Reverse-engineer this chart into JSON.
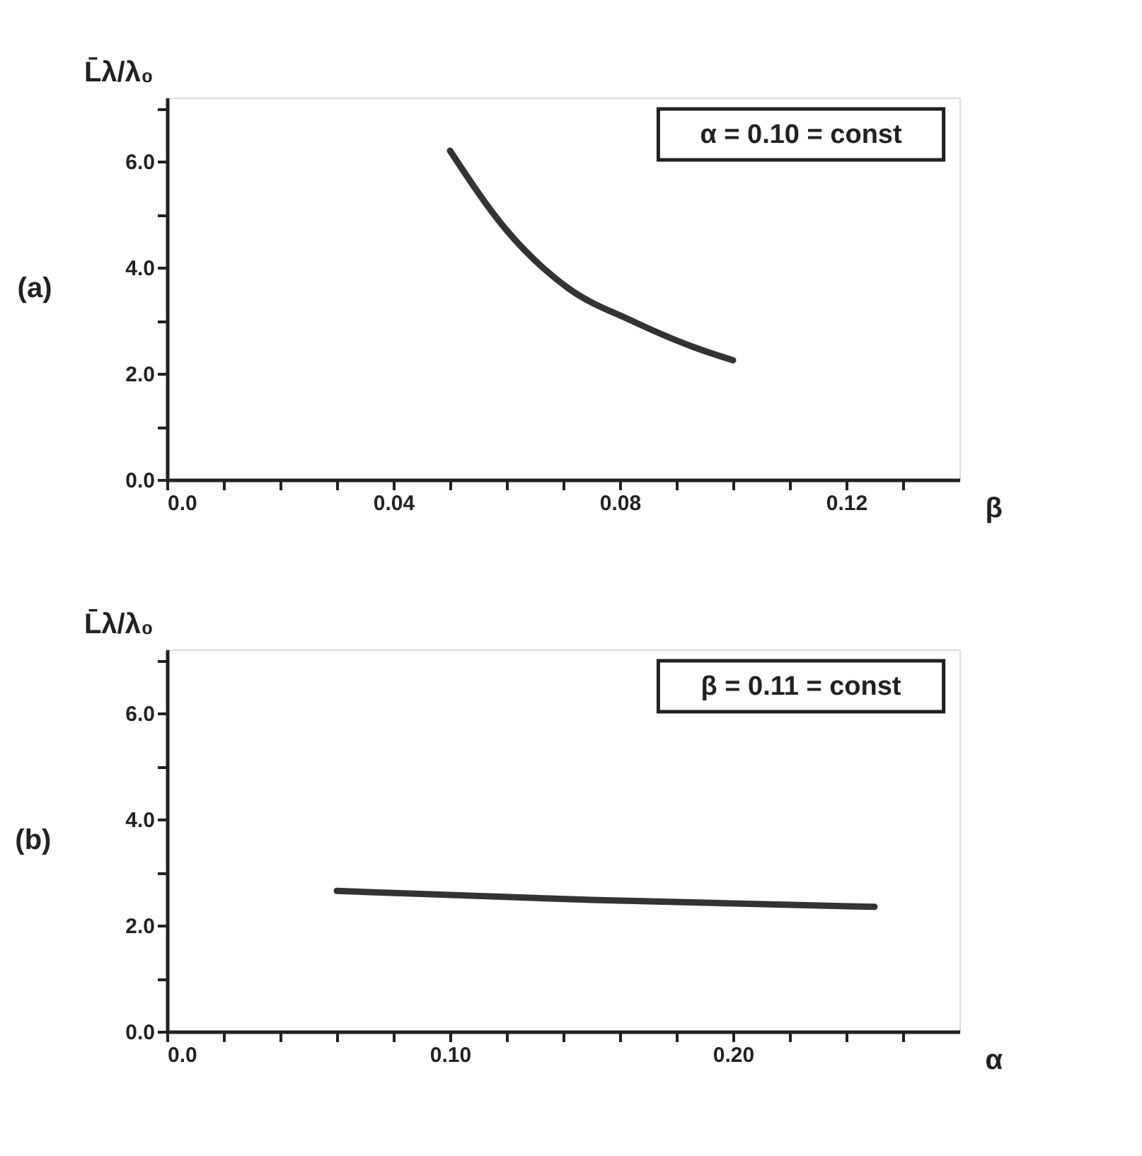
{
  "chart_data": [
    {
      "type": "line",
      "title": "(a)",
      "xlabel": "β",
      "ylabel": "L̄λ/λ₀",
      "annotations": [
        "α = 0.10 = const"
      ],
      "grid": false,
      "line_style": "solid",
      "xlim": [
        0,
        0.14
      ],
      "ylim": [
        0,
        7.2
      ],
      "xticks": [
        {
          "value": 0,
          "label": "0.0"
        },
        {
          "value": 0.01,
          "label": null
        },
        {
          "value": 0.02,
          "label": null
        },
        {
          "value": 0.03,
          "label": null
        },
        0.04,
        {
          "value": 0.05,
          "label": null
        },
        {
          "value": 0.06,
          "label": null
        },
        {
          "value": 0.07,
          "label": null
        },
        0.08,
        {
          "value": 0.09,
          "label": null
        },
        {
          "value": 0.1,
          "label": null
        },
        {
          "value": 0.11,
          "label": null
        },
        0.12,
        {
          "value": 0.13,
          "label": null
        }
      ],
      "yticks": [
        {
          "value": 0,
          "label": "0.0"
        },
        {
          "value": 1,
          "label": null
        },
        {
          "value": 2,
          "label": "2.0"
        },
        {
          "value": 3,
          "label": null
        },
        {
          "value": 4,
          "label": "4.0"
        },
        {
          "value": 5,
          "label": null
        },
        {
          "value": 6,
          "label": "6.0"
        },
        {
          "value": 7,
          "label": null
        }
      ],
      "series": [
        {
          "color": "#333333",
          "x": [
            0.05,
            0.06,
            0.071,
            0.082,
            0.093,
            0.1
          ],
          "values": [
            6.2,
            4.7,
            3.6,
            3.0,
            2.5,
            2.25
          ]
        }
      ]
    },
    {
      "type": "line",
      "title": "(b)",
      "xlabel": "α",
      "ylabel": "L̄λ/λ₀",
      "annotations": [
        "β = 0.11 = const"
      ],
      "grid": false,
      "line_style": "solid",
      "xlim": [
        0,
        0.28
      ],
      "ylim": [
        0,
        7.2
      ],
      "xticks": [
        {
          "value": 0,
          "label": "0.0"
        },
        {
          "value": 0.02,
          "label": null
        },
        {
          "value": 0.04,
          "label": null
        },
        {
          "value": 0.06,
          "label": null
        },
        {
          "value": 0.08,
          "label": null
        },
        {
          "value": 0.1,
          "label": "0.10"
        },
        {
          "value": 0.12,
          "label": null
        },
        {
          "value": 0.14,
          "label": null
        },
        {
          "value": 0.16,
          "label": null
        },
        {
          "value": 0.18,
          "label": null
        },
        {
          "value": 0.2,
          "label": "0.20"
        },
        {
          "value": 0.22,
          "label": null
        },
        {
          "value": 0.24,
          "label": null
        },
        {
          "value": 0.26,
          "label": null
        }
      ],
      "yticks": [
        {
          "value": 0,
          "label": "0.0"
        },
        {
          "value": 1,
          "label": null
        },
        {
          "value": 2,
          "label": "2.0"
        },
        {
          "value": 3,
          "label": null
        },
        {
          "value": 4,
          "label": "4.0"
        },
        {
          "value": 5,
          "label": null
        },
        {
          "value": 6,
          "label": "6.0"
        },
        {
          "value": 7,
          "label": null
        }
      ],
      "series": [
        {
          "color": "#333333",
          "x": [
            0.06,
            0.15,
            0.25
          ],
          "values": [
            2.65,
            2.48,
            2.35
          ]
        }
      ]
    }
  ]
}
